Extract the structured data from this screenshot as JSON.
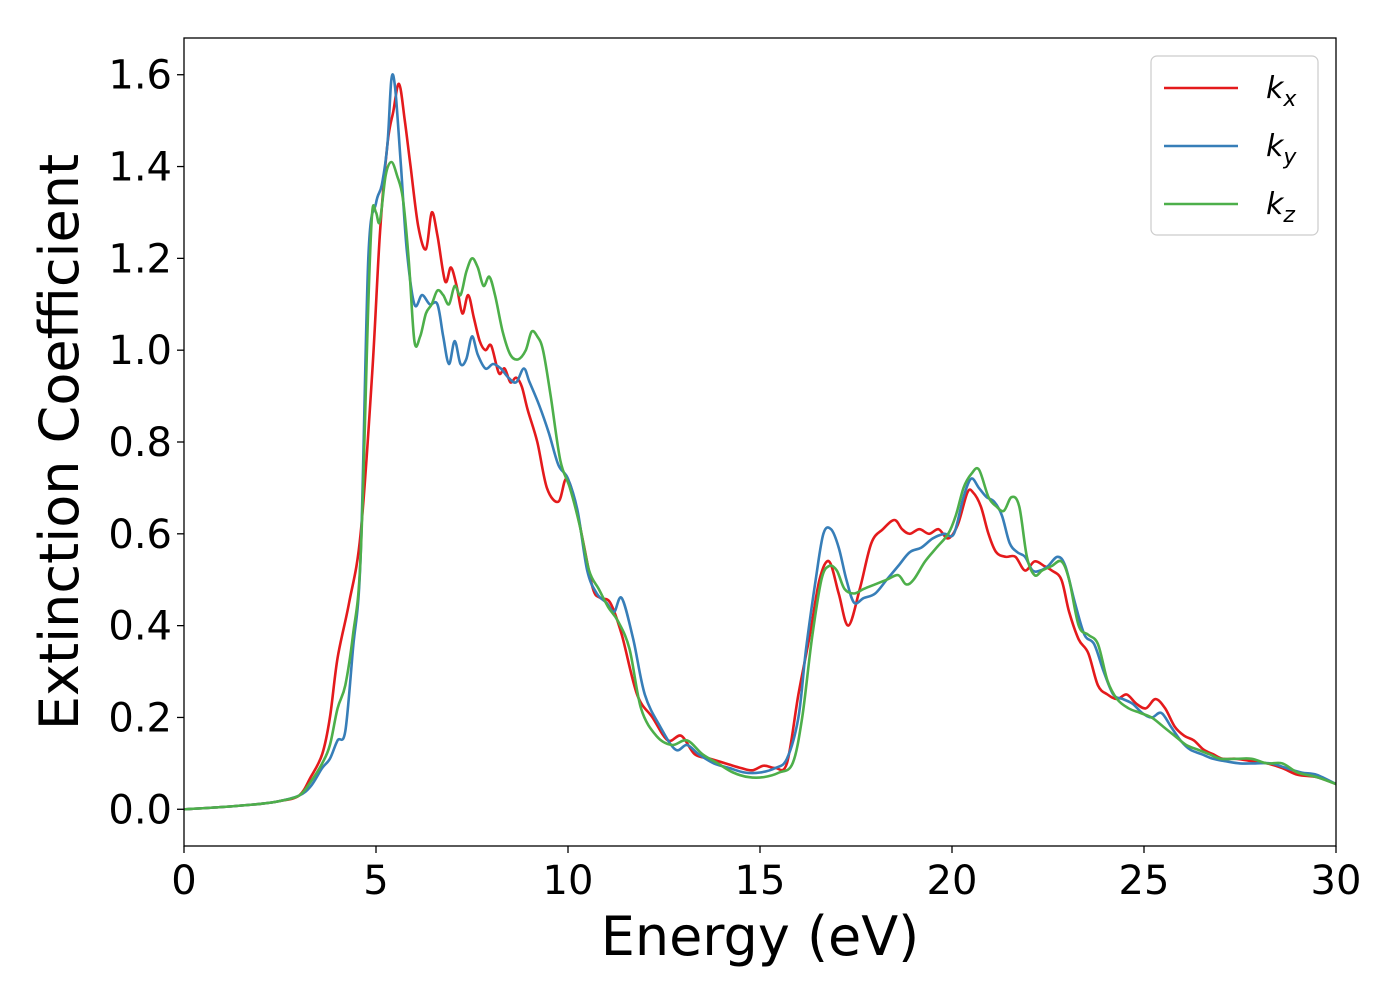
{
  "chart_data": {
    "type": "line",
    "title": "",
    "xlabel": "Energy (eV)",
    "ylabel": "Extinction Coefficient",
    "xlim": [
      0,
      30
    ],
    "ylim": [
      -0.08,
      1.68
    ],
    "xticks": [
      "0",
      "5",
      "10",
      "15",
      "20",
      "25",
      "30"
    ],
    "yticks": [
      "0.0",
      "0.2",
      "0.4",
      "0.6",
      "0.8",
      "1.0",
      "1.2",
      "1.4",
      "1.6"
    ],
    "grid": false,
    "legend": "top-right",
    "series": [
      {
        "name": "k",
        "subscript": "x",
        "color": "#e41a1c",
        "x": [
          0,
          1,
          2,
          2.5,
          3,
          3.3,
          3.6,
          3.8,
          4,
          4.3,
          4.6,
          4.9,
          5.1,
          5.3,
          5.45,
          5.6,
          5.75,
          5.9,
          6.1,
          6.3,
          6.45,
          6.6,
          6.8,
          6.95,
          7.1,
          7.25,
          7.4,
          7.55,
          7.7,
          7.85,
          8,
          8.2,
          8.35,
          8.5,
          8.65,
          8.8,
          8.95,
          9.2,
          9.45,
          9.75,
          9.95,
          10.15,
          10.4,
          10.65,
          10.85,
          11.1,
          11.4,
          11.8,
          12.2,
          12.6,
          12.95,
          13.3,
          13.7,
          14.1,
          14.5,
          14.8,
          15.1,
          15.4,
          15.7,
          16,
          16.3,
          16.55,
          16.8,
          17.05,
          17.3,
          17.6,
          17.9,
          18.2,
          18.5,
          18.7,
          18.9,
          19.15,
          19.4,
          19.65,
          19.9,
          20.15,
          20.4,
          20.55,
          20.75,
          20.95,
          21.15,
          21.4,
          21.65,
          21.9,
          22.15,
          22.4,
          22.6,
          22.85,
          23.05,
          23.3,
          23.55,
          23.8,
          24.05,
          24.3,
          24.55,
          24.8,
          25.05,
          25.3,
          25.55,
          25.8,
          26.05,
          26.3,
          26.55,
          26.8,
          27.05,
          27.4,
          27.8,
          28.2,
          28.6,
          29.0,
          29.5,
          30
        ],
        "y": [
          0.0,
          0.005,
          0.012,
          0.018,
          0.03,
          0.07,
          0.12,
          0.2,
          0.33,
          0.45,
          0.6,
          0.95,
          1.25,
          1.45,
          1.52,
          1.58,
          1.5,
          1.4,
          1.27,
          1.22,
          1.3,
          1.25,
          1.15,
          1.18,
          1.14,
          1.08,
          1.12,
          1.07,
          1.02,
          1.0,
          1.01,
          0.95,
          0.96,
          0.93,
          0.94,
          0.92,
          0.87,
          0.8,
          0.7,
          0.67,
          0.72,
          0.68,
          0.58,
          0.48,
          0.46,
          0.45,
          0.38,
          0.25,
          0.2,
          0.15,
          0.16,
          0.12,
          0.11,
          0.1,
          0.09,
          0.085,
          0.095,
          0.09,
          0.1,
          0.25,
          0.38,
          0.5,
          0.54,
          0.47,
          0.4,
          0.48,
          0.58,
          0.61,
          0.63,
          0.61,
          0.6,
          0.61,
          0.6,
          0.61,
          0.59,
          0.62,
          0.69,
          0.69,
          0.66,
          0.6,
          0.56,
          0.55,
          0.55,
          0.52,
          0.54,
          0.53,
          0.52,
          0.5,
          0.43,
          0.37,
          0.34,
          0.27,
          0.25,
          0.24,
          0.25,
          0.23,
          0.22,
          0.24,
          0.22,
          0.18,
          0.16,
          0.15,
          0.13,
          0.12,
          0.11,
          0.11,
          0.105,
          0.1,
          0.09,
          0.075,
          0.07,
          0.055
        ]
      },
      {
        "name": "k",
        "subscript": "y",
        "color": "#377eb8",
        "x": [
          0,
          1,
          2,
          2.5,
          3,
          3.3,
          3.6,
          3.8,
          4,
          4.2,
          4.4,
          4.6,
          4.8,
          5.0,
          5.15,
          5.3,
          5.4,
          5.5,
          5.65,
          5.8,
          6.0,
          6.2,
          6.4,
          6.6,
          6.75,
          6.9,
          7.05,
          7.2,
          7.35,
          7.5,
          7.65,
          7.85,
          8.05,
          8.25,
          8.45,
          8.65,
          8.85,
          9.0,
          9.25,
          9.5,
          9.75,
          10.0,
          10.25,
          10.5,
          10.75,
          11.0,
          11.2,
          11.4,
          11.7,
          12.0,
          12.4,
          12.8,
          13.1,
          13.4,
          13.8,
          14.2,
          14.6,
          15.0,
          15.4,
          15.7,
          16.0,
          16.2,
          16.45,
          16.65,
          16.85,
          17.05,
          17.25,
          17.45,
          17.7,
          18.0,
          18.3,
          18.6,
          18.9,
          19.2,
          19.5,
          19.8,
          20.05,
          20.3,
          20.5,
          20.7,
          20.9,
          21.1,
          21.3,
          21.5,
          21.7,
          21.9,
          22.1,
          22.3,
          22.5,
          22.75,
          22.95,
          23.2,
          23.45,
          23.7,
          23.95,
          24.2,
          24.45,
          24.7,
          24.95,
          25.2,
          25.45,
          25.7,
          25.95,
          26.2,
          26.5,
          26.8,
          27.1,
          27.5,
          27.9,
          28.3,
          28.7,
          29.1,
          29.5,
          30
        ],
        "y": [
          0.0,
          0.005,
          0.012,
          0.018,
          0.03,
          0.05,
          0.09,
          0.11,
          0.15,
          0.17,
          0.35,
          0.55,
          1.2,
          1.32,
          1.36,
          1.45,
          1.59,
          1.57,
          1.4,
          1.22,
          1.1,
          1.12,
          1.1,
          1.1,
          1.03,
          0.97,
          1.02,
          0.97,
          0.98,
          1.03,
          0.99,
          0.96,
          0.97,
          0.96,
          0.94,
          0.93,
          0.96,
          0.93,
          0.88,
          0.82,
          0.75,
          0.72,
          0.65,
          0.52,
          0.47,
          0.45,
          0.43,
          0.46,
          0.37,
          0.25,
          0.18,
          0.13,
          0.14,
          0.12,
          0.1,
          0.09,
          0.08,
          0.08,
          0.09,
          0.11,
          0.2,
          0.35,
          0.5,
          0.6,
          0.61,
          0.57,
          0.5,
          0.45,
          0.46,
          0.47,
          0.5,
          0.53,
          0.56,
          0.57,
          0.59,
          0.6,
          0.6,
          0.68,
          0.72,
          0.7,
          0.68,
          0.67,
          0.64,
          0.58,
          0.56,
          0.55,
          0.52,
          0.52,
          0.53,
          0.55,
          0.53,
          0.45,
          0.38,
          0.36,
          0.3,
          0.25,
          0.24,
          0.23,
          0.21,
          0.2,
          0.21,
          0.18,
          0.15,
          0.13,
          0.12,
          0.11,
          0.105,
          0.1,
          0.1,
          0.1,
          0.09,
          0.08,
          0.075,
          0.055
        ]
      },
      {
        "name": "k",
        "subscript": "z",
        "color": "#4daf4a",
        "x": [
          0,
          1,
          2,
          2.5,
          3,
          3.3,
          3.6,
          3.8,
          4,
          4.2,
          4.4,
          4.6,
          4.8,
          4.9,
          5.0,
          5.1,
          5.25,
          5.4,
          5.55,
          5.7,
          5.85,
          6.0,
          6.15,
          6.3,
          6.45,
          6.6,
          6.75,
          6.9,
          7.05,
          7.2,
          7.35,
          7.5,
          7.65,
          7.8,
          7.95,
          8.1,
          8.3,
          8.5,
          8.7,
          8.9,
          9.05,
          9.2,
          9.35,
          9.55,
          9.8,
          10.05,
          10.3,
          10.55,
          10.8,
          11.05,
          11.3,
          11.6,
          11.9,
          12.3,
          12.7,
          13.1,
          13.5,
          13.9,
          14.3,
          14.7,
          15.1,
          15.5,
          15.85,
          16.1,
          16.35,
          16.6,
          16.8,
          17.0,
          17.2,
          17.45,
          17.7,
          18.0,
          18.3,
          18.6,
          18.8,
          19.0,
          19.3,
          19.6,
          19.9,
          20.1,
          20.3,
          20.5,
          20.7,
          20.95,
          21.15,
          21.35,
          21.55,
          21.75,
          21.95,
          22.15,
          22.35,
          22.6,
          22.85,
          23.05,
          23.3,
          23.55,
          23.8,
          24.05,
          24.3,
          24.6,
          24.9,
          25.2,
          25.5,
          25.8,
          26.1,
          26.4,
          26.7,
          27.0,
          27.4,
          27.8,
          28.2,
          28.6,
          29.0,
          29.5,
          30
        ],
        "y": [
          0.0,
          0.005,
          0.012,
          0.018,
          0.03,
          0.06,
          0.1,
          0.14,
          0.22,
          0.27,
          0.38,
          0.55,
          1.1,
          1.3,
          1.3,
          1.28,
          1.38,
          1.41,
          1.38,
          1.33,
          1.2,
          1.02,
          1.03,
          1.08,
          1.1,
          1.13,
          1.12,
          1.1,
          1.14,
          1.12,
          1.17,
          1.2,
          1.18,
          1.14,
          1.16,
          1.12,
          1.04,
          0.99,
          0.98,
          1.0,
          1.04,
          1.03,
          1.0,
          0.9,
          0.76,
          0.7,
          0.62,
          0.52,
          0.48,
          0.44,
          0.41,
          0.35,
          0.22,
          0.16,
          0.14,
          0.15,
          0.12,
          0.1,
          0.08,
          0.07,
          0.07,
          0.08,
          0.1,
          0.2,
          0.37,
          0.5,
          0.53,
          0.52,
          0.48,
          0.47,
          0.48,
          0.49,
          0.5,
          0.51,
          0.49,
          0.5,
          0.54,
          0.57,
          0.6,
          0.64,
          0.7,
          0.73,
          0.74,
          0.68,
          0.66,
          0.65,
          0.68,
          0.66,
          0.55,
          0.51,
          0.52,
          0.53,
          0.54,
          0.5,
          0.4,
          0.38,
          0.36,
          0.28,
          0.24,
          0.22,
          0.21,
          0.2,
          0.18,
          0.16,
          0.14,
          0.13,
          0.12,
          0.11,
          0.11,
          0.11,
          0.1,
          0.1,
          0.08,
          0.07,
          0.055
        ]
      }
    ]
  }
}
